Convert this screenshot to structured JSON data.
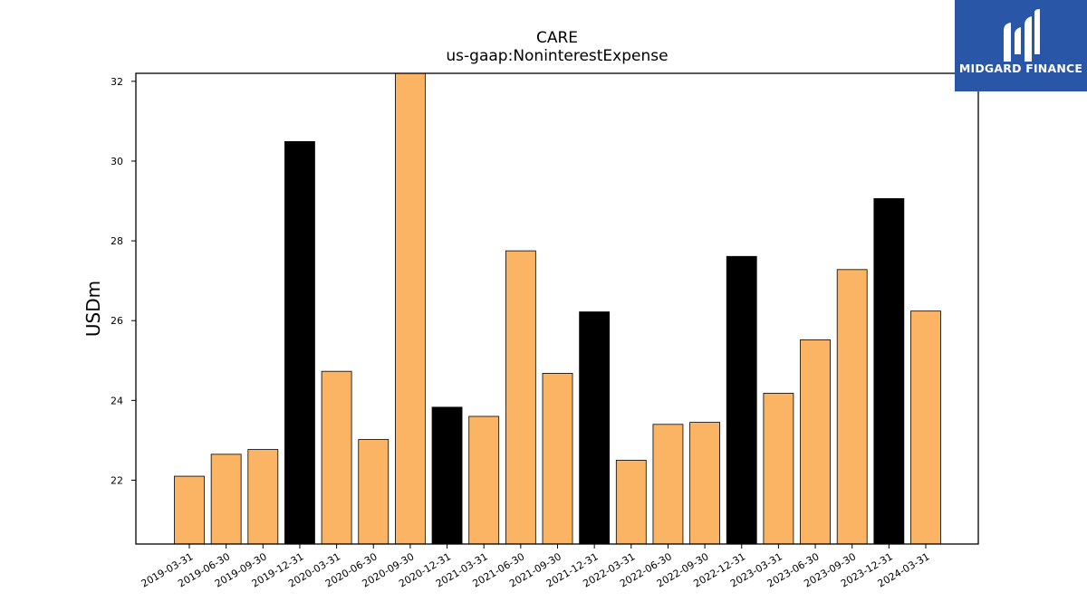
{
  "title": "CARE",
  "subtitle": "us-gaap:NoninterestExpense",
  "logo": {
    "text": "MIDGARD FINANCE",
    "background": "#2a56a8"
  },
  "colors": {
    "regular": "#fbb463",
    "highlight": "#000000",
    "edge": "#000000"
  },
  "chart_data": {
    "type": "bar",
    "title": "CARE",
    "subtitle": "us-gaap:NoninterestExpense",
    "xlabel": "",
    "ylabel": "USDm",
    "ylim": [
      20.4,
      32.2
    ],
    "yticks": [
      22,
      24,
      26,
      28,
      30,
      32
    ],
    "grid": false,
    "categories": [
      "2019-03-31",
      "2019-06-30",
      "2019-09-30",
      "2019-12-31",
      "2020-03-31",
      "2020-06-30",
      "2020-09-30",
      "2020-12-31",
      "2021-03-31",
      "2021-06-30",
      "2021-09-30",
      "2021-12-31",
      "2022-03-31",
      "2022-06-30",
      "2022-09-30",
      "2022-12-31",
      "2023-03-31",
      "2023-06-30",
      "2023-09-30",
      "2023-12-31",
      "2024-03-31"
    ],
    "values": [
      22.1,
      22.65,
      22.77,
      30.49,
      24.73,
      23.02,
      32.2,
      23.83,
      23.6,
      27.75,
      24.68,
      26.22,
      22.5,
      23.4,
      23.45,
      27.61,
      24.18,
      25.52,
      27.28,
      29.06,
      26.24
    ],
    "highlight": [
      false,
      false,
      false,
      true,
      false,
      false,
      false,
      true,
      false,
      false,
      false,
      true,
      false,
      false,
      false,
      true,
      false,
      false,
      false,
      true,
      false
    ]
  }
}
